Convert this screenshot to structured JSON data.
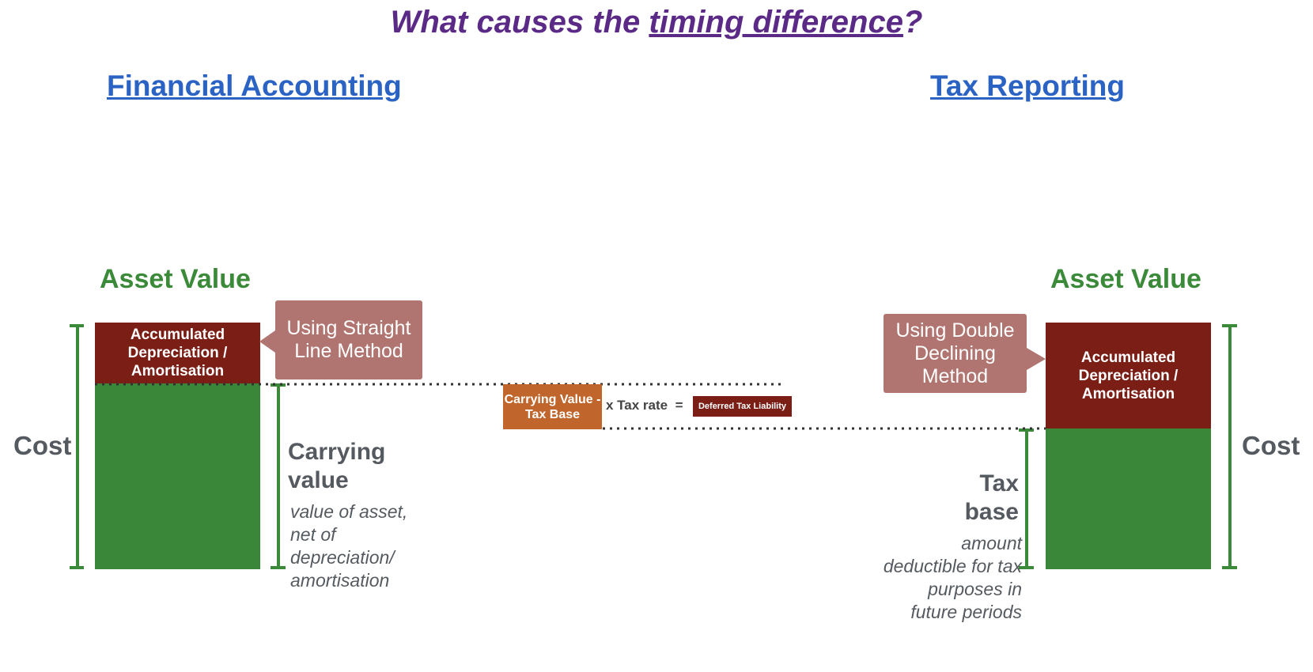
{
  "title": {
    "prefix": "What causes the ",
    "underlined": "timing difference",
    "suffix": "?"
  },
  "left": {
    "heading": "Financial Accounting",
    "asset_value": "Asset Value",
    "accumulated": "Accumulated Depreciation / Amortisation",
    "callout": "Using Straight Line Method",
    "cost": "Cost",
    "sub_label": "Carrying value",
    "sub_desc": "value of asset, net of depreciation/ amortisation"
  },
  "middle": {
    "formula_box": "Carrying Value - Tax Base",
    "times": "x Tax rate",
    "equals": "=",
    "result": "Deferred Tax Liability"
  },
  "right": {
    "heading": "Tax Reporting",
    "asset_value": "Asset Value",
    "accumulated": "Accumulated Depreciation / Amortisation",
    "callout": "Using Double Declining Method",
    "cost": "Cost",
    "sub_label": "Tax base",
    "sub_desc": "amount deductible for tax purposes in future periods"
  },
  "colors": {
    "title": "#5b2a86",
    "heading": "#2a63c4",
    "green": "#3b8739",
    "dark_red": "#7b1e16",
    "callout": "#b07570",
    "orange": "#c0652b"
  }
}
